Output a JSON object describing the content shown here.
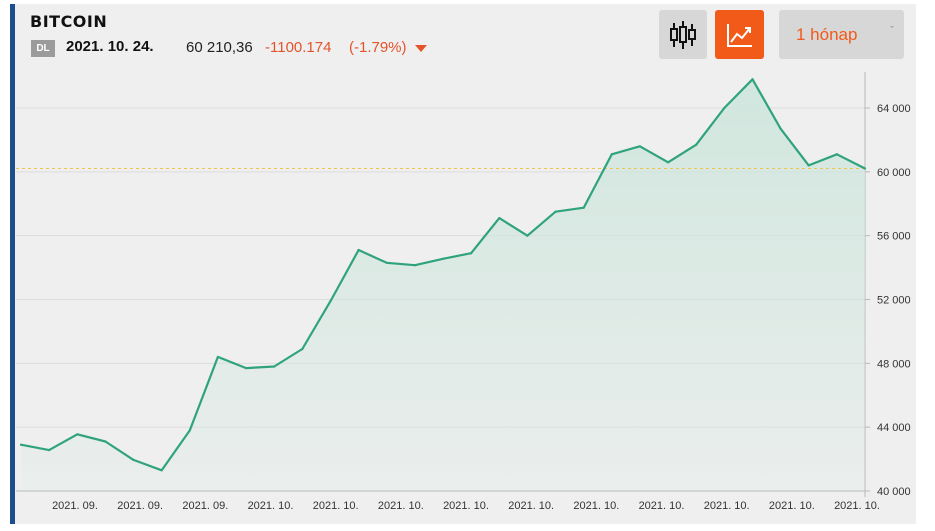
{
  "header": {
    "title": "BITCOIN",
    "badge": "DL",
    "date": "2021. 10. 24.",
    "price": "60 210,36",
    "change": "-1100.174",
    "change_pct": "(-1.79%)",
    "change_direction_icon": "triangle-down-icon"
  },
  "toolbar": {
    "candlestick_icon": "candlestick-icon",
    "line_chart_icon": "line-chart-icon",
    "period_label": "1 hónap",
    "period_chevron": "ˇ"
  },
  "colors": {
    "line": "#2fa37e",
    "fill": "#cfe6dd",
    "negative": "#e5532a",
    "accent": "#f25a1a",
    "reference_line": "#f0c64a"
  },
  "chart_data": {
    "type": "area",
    "x_tick_labels": [
      "2021. 09.",
      "2021. 09.",
      "2021. 09.",
      "2021. 10.",
      "2021. 10.",
      "2021. 10.",
      "2021. 10.",
      "2021. 10.",
      "2021. 10.",
      "2021. 10.",
      "2021. 10.",
      "2021. 10.",
      "2021. 10."
    ],
    "values": [
      42900,
      42560,
      43550,
      43100,
      41950,
      41300,
      43800,
      48400,
      47700,
      47800,
      48900,
      51900,
      55100,
      54300,
      54150,
      54550,
      54900,
      57100,
      56000,
      57500,
      57750,
      61100,
      61600,
      60600,
      61700,
      64000,
      65800,
      62700,
      60400,
      61100,
      60210
    ],
    "ylim": [
      40000,
      66000
    ],
    "y_ticks": [
      40000,
      44000,
      48000,
      52000,
      56000,
      60000,
      64000
    ],
    "y_tick_labels": [
      "40 000",
      "44 000",
      "48 000",
      "52 000",
      "56 000",
      "60 000",
      "64 000"
    ],
    "reference_value": 60210.36,
    "grid": true
  }
}
